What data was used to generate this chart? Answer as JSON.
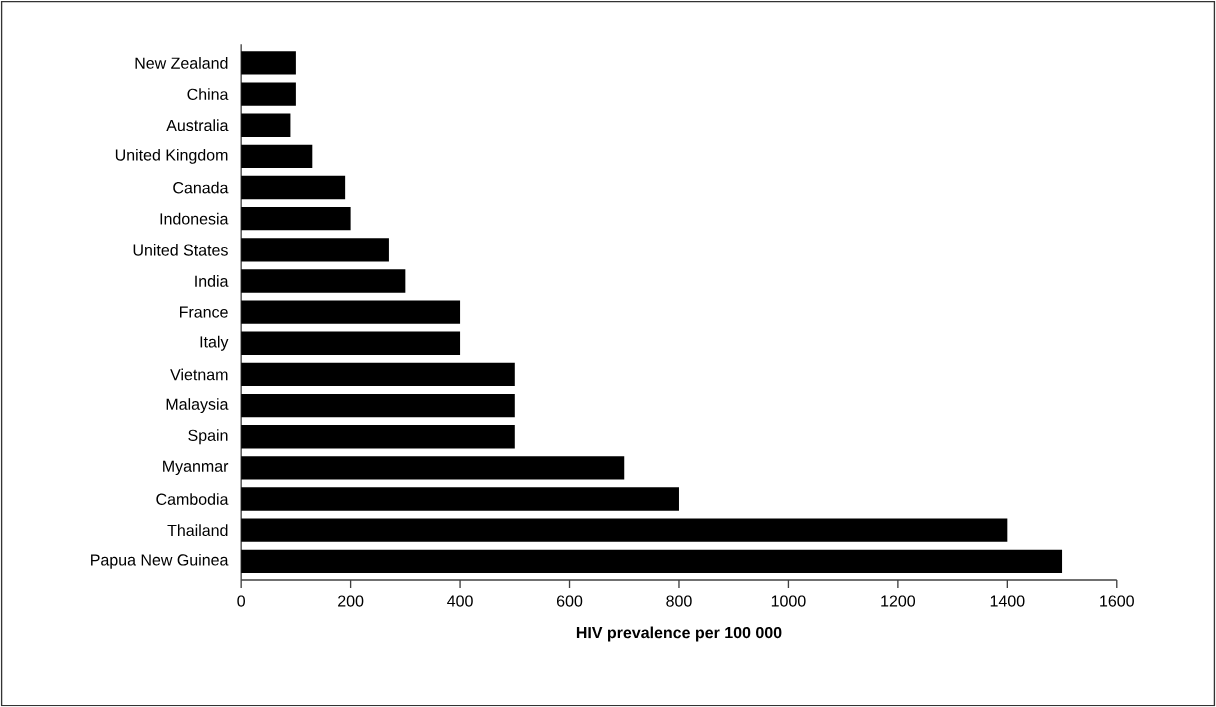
{
  "chart_data": {
    "type": "bar",
    "orientation": "horizontal",
    "xlabel": "HIV prevalence per 100 000",
    "categories": [
      "New Zealand",
      "China",
      "Australia",
      "United Kingdom",
      "Canada",
      "Indonesia",
      "United States",
      "India",
      "France",
      "Italy",
      "Vietnam",
      "Malaysia",
      "Spain",
      "Myanmar",
      "Cambodia",
      "Thailand",
      "Papua New Guinea"
    ],
    "values": [
      100,
      100,
      90,
      130,
      190,
      200,
      270,
      300,
      400,
      400,
      500,
      500,
      500,
      700,
      800,
      1400,
      1500
    ],
    "color": "#000000",
    "xlim": [
      0,
      1600
    ],
    "xticks": [
      0,
      200,
      400,
      600,
      800,
      1000,
      1200,
      1400,
      1600
    ]
  }
}
